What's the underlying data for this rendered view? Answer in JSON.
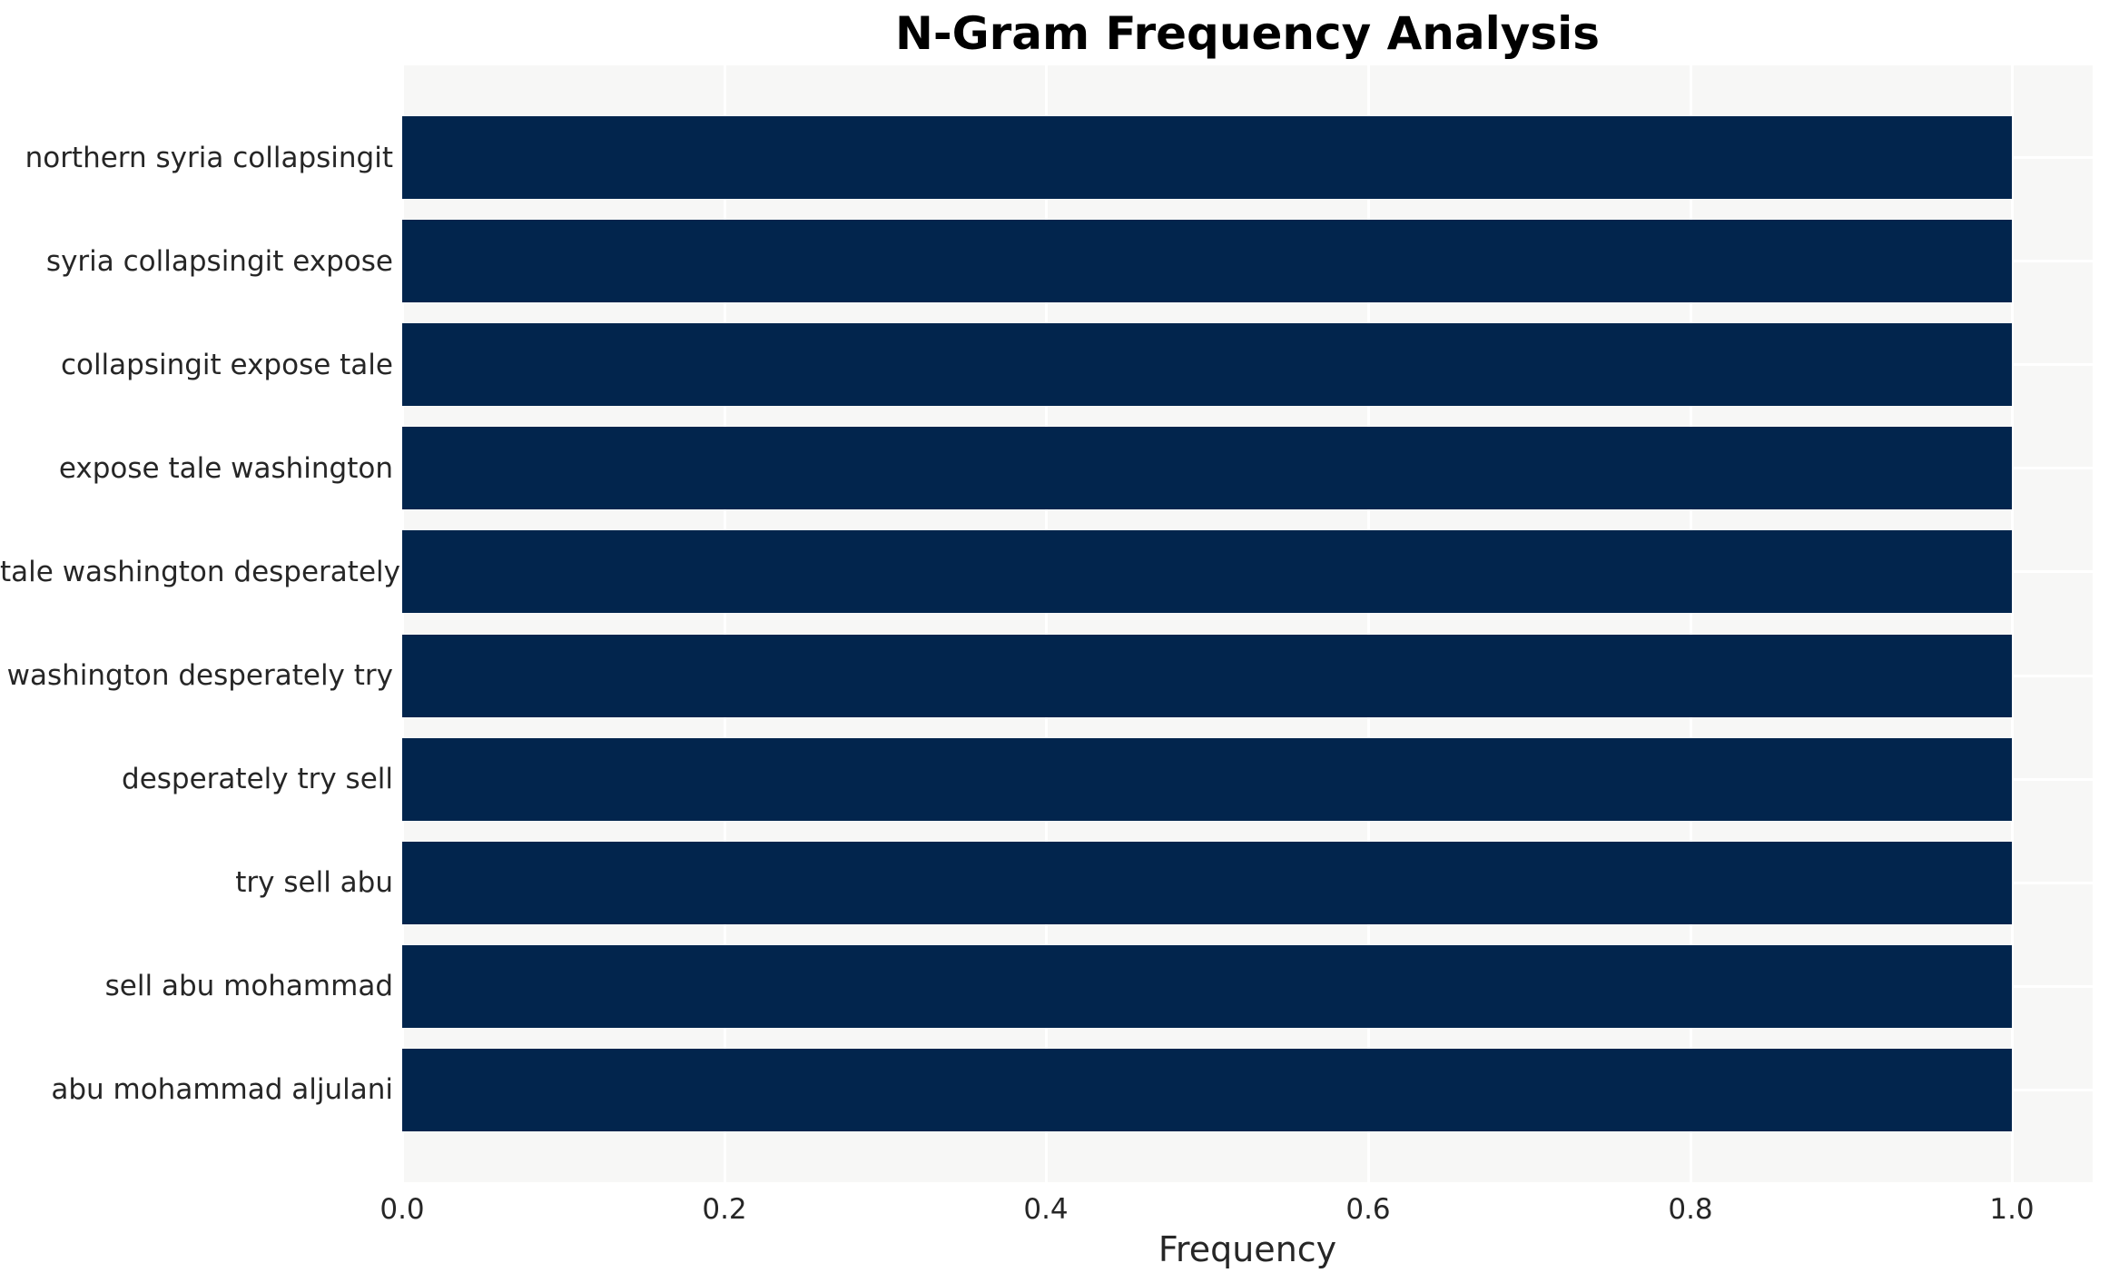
{
  "chart_data": {
    "type": "bar",
    "orientation": "horizontal",
    "title": "N-Gram Frequency Analysis",
    "xlabel": "Frequency",
    "ylabel": "",
    "categories": [
      "northern syria collapsingit",
      "syria collapsingit expose",
      "collapsingit expose tale",
      "expose tale washington",
      "tale washington desperately",
      "washington desperately try",
      "desperately try sell",
      "try sell abu",
      "sell abu mohammad",
      "abu mohammad aljulani"
    ],
    "values": [
      1.0,
      1.0,
      1.0,
      1.0,
      1.0,
      1.0,
      1.0,
      1.0,
      1.0,
      1.0
    ],
    "x_ticks": [
      0.0,
      0.2,
      0.4,
      0.6,
      0.8,
      1.0
    ],
    "x_tick_labels": [
      "0.0",
      "0.2",
      "0.4",
      "0.6",
      "0.8",
      "1.0"
    ],
    "xlim": [
      0,
      1.05
    ],
    "grid": true,
    "legend_position": "none",
    "colors": {
      "bar": "#02254d",
      "plot_background": "#f7f7f6",
      "figure_background": "#ffffff",
      "gridline": "#ffffff",
      "tick_text": "#262626",
      "title_text": "#000000"
    }
  }
}
